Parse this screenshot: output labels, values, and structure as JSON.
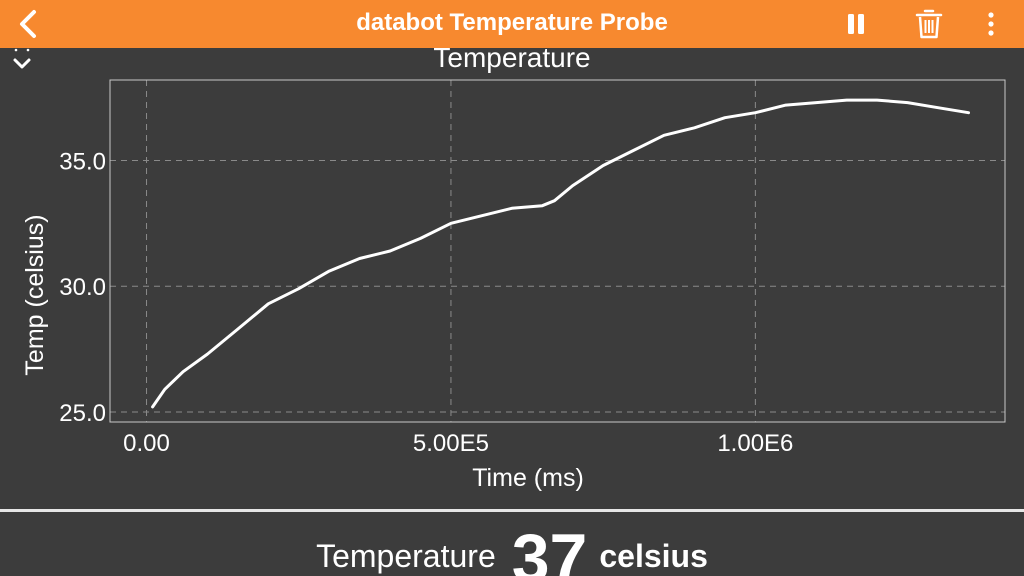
{
  "header": {
    "title": "databot Temperature Probe",
    "back_icon": "chevron-left-icon",
    "pause_icon": "pause-icon",
    "trash_icon": "trash-icon",
    "more_icon": "more-vertical-icon",
    "background_color": "#f7892f"
  },
  "collapse_icon": "chevron-down-icon",
  "chart_data": {
    "type": "line",
    "title": "Temperature",
    "xlabel": "Time (ms)",
    "ylabel": "Temp (celsius)",
    "x_ticks": [
      "0.00",
      "5.00E5",
      "1.00E6"
    ],
    "x_tick_values": [
      0,
      500000,
      1000000
    ],
    "y_ticks": [
      "25.0",
      "30.0",
      "35.0"
    ],
    "y_tick_values": [
      25,
      30,
      35
    ],
    "xlim": [
      -60000,
      1410000
    ],
    "ylim": [
      24.6,
      38.2
    ],
    "grid": true,
    "line_color": "#ffffff",
    "series": [
      {
        "x": [
          10000,
          30000,
          60000,
          100000,
          150000,
          200000,
          250000,
          300000,
          350000,
          400000,
          450000,
          500000,
          550000,
          600000,
          650000,
          670000,
          700000,
          750000,
          800000,
          850000,
          900000,
          950000,
          1000000,
          1050000,
          1100000,
          1150000,
          1200000,
          1250000,
          1300000,
          1350000
        ],
        "y": [
          25.2,
          25.9,
          26.6,
          27.3,
          28.3,
          29.3,
          29.9,
          30.6,
          31.1,
          31.4,
          31.9,
          32.5,
          32.8,
          33.1,
          33.2,
          33.4,
          34.0,
          34.8,
          35.4,
          36.0,
          36.3,
          36.7,
          36.9,
          37.2,
          37.3,
          37.4,
          37.4,
          37.3,
          37.1,
          36.9
        ]
      }
    ]
  },
  "readout": {
    "label": "Temperature",
    "value": "37",
    "unit": "celsius"
  }
}
